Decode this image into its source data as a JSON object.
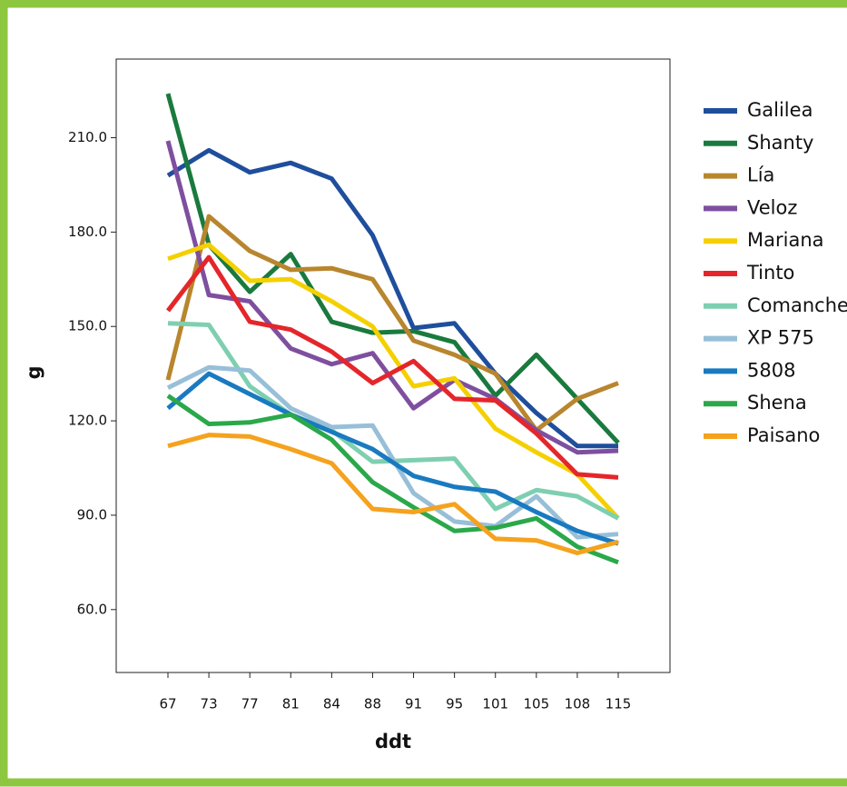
{
  "chart_data": {
    "type": "line",
    "x_label": "ddt",
    "y_label": "g",
    "categories": [
      "67",
      "73",
      "77",
      "81",
      "84",
      "88",
      "91",
      "95",
      "101",
      "105",
      "108",
      "115"
    ],
    "ylim": [
      40,
      235
    ],
    "yticks": [
      {
        "value": 60,
        "label": "60.0"
      },
      {
        "value": 90,
        "label": "90.0"
      },
      {
        "value": 120,
        "label": "120.0"
      },
      {
        "value": 150,
        "label": "150.0"
      },
      {
        "value": 180,
        "label": "180.0"
      },
      {
        "value": 210,
        "label": "210.0"
      }
    ],
    "grid": false,
    "legend": "right",
    "series": [
      {
        "name": "Galilea",
        "color": "#1f4e9c",
        "values": [
          198,
          206,
          199,
          202,
          197,
          179,
          149.5,
          151,
          135,
          122.5,
          112,
          112
        ]
      },
      {
        "name": "Shanty",
        "color": "#1a7a3e",
        "values": [
          224,
          176,
          161,
          173,
          151.5,
          148,
          148.5,
          145,
          128,
          141,
          127,
          113
        ]
      },
      {
        "name": "Lía",
        "color": "#b8862e",
        "values": [
          133,
          185,
          174,
          168,
          168.5,
          165,
          145.5,
          141,
          135,
          117,
          127,
          132
        ]
      },
      {
        "name": "Veloz",
        "color": "#7f4f9f",
        "values": [
          209,
          160,
          158,
          143,
          138,
          141.5,
          124,
          133,
          127,
          117,
          110,
          110.5
        ]
      },
      {
        "name": "Mariana",
        "color": "#f5d000",
        "values": [
          171.5,
          176,
          164.5,
          165,
          158,
          150,
          131,
          133.5,
          117.5,
          110,
          103,
          89
        ]
      },
      {
        "name": "Tinto",
        "color": "#e4262b",
        "values": [
          155,
          172,
          151.5,
          149,
          142,
          132,
          139,
          127,
          126.5,
          116,
          103,
          102
        ]
      },
      {
        "name": "Comanche",
        "color": "#7ecfb0",
        "values": [
          151,
          150.5,
          131,
          122,
          117,
          107,
          107.5,
          108,
          92,
          98,
          96,
          89
        ]
      },
      {
        "name": "XP 575",
        "color": "#98bfd8",
        "values": [
          130.5,
          137,
          136,
          124,
          118,
          118.5,
          97,
          88,
          86.5,
          96,
          83,
          84
        ]
      },
      {
        "name": "5808",
        "color": "#1a7ac0",
        "values": [
          124,
          135,
          128.5,
          122,
          116.5,
          111,
          102.5,
          99,
          97.5,
          91,
          85,
          81
        ]
      },
      {
        "name": "Shena",
        "color": "#2aa84a",
        "values": [
          128,
          119,
          119.5,
          122,
          114,
          100.5,
          92.5,
          85,
          86,
          89,
          80,
          75
        ]
      },
      {
        "name": "Paisano",
        "color": "#f5a21e",
        "values": [
          112,
          115.5,
          115,
          111,
          106.5,
          92,
          91,
          93.5,
          82.5,
          82,
          78,
          81.5
        ]
      }
    ]
  }
}
